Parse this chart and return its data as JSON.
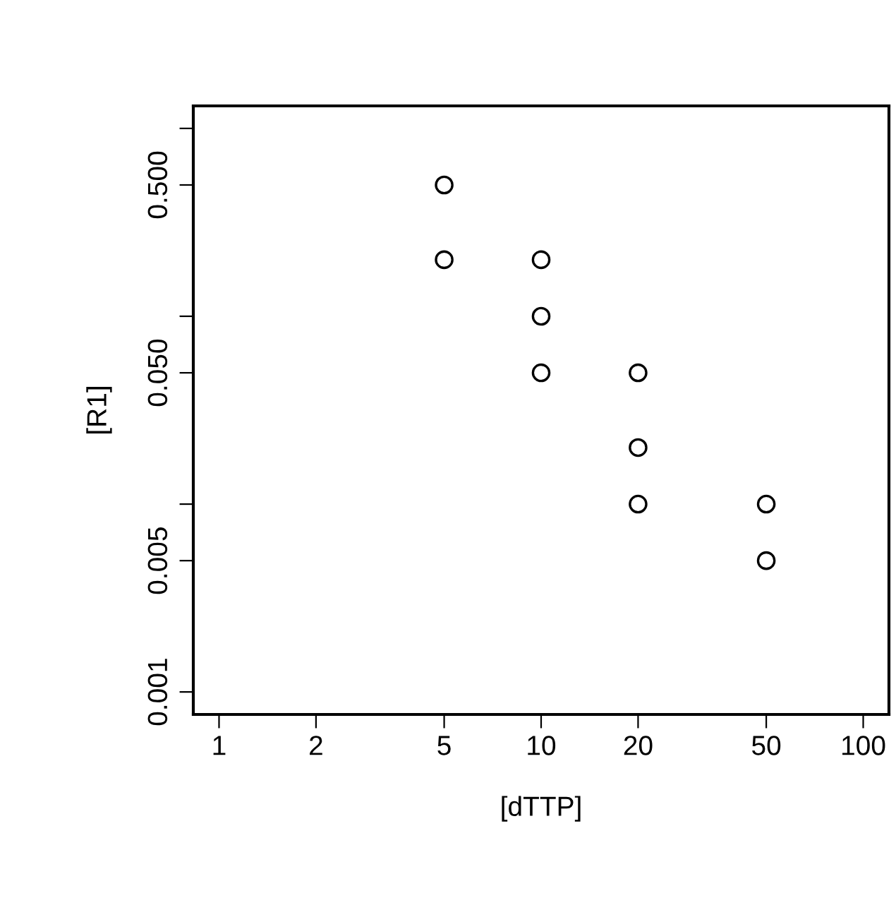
{
  "chart_data": {
    "type": "scatter",
    "xlabel": "[dTTP]",
    "ylabel": "[R1]",
    "log": "xy",
    "x": [
      5,
      5,
      10,
      10,
      10,
      20,
      20,
      20,
      50,
      50
    ],
    "series": [
      {
        "color": "#000000",
        "values": [
          0.5,
          0.2,
          0.2,
          0.1,
          0.05,
          0.05,
          0.02,
          0.01,
          0.01,
          0.005
        ]
      }
    ],
    "marker": "circle",
    "grid": false,
    "legend": false,
    "xlim": [
      0.832,
      120.2
    ],
    "ylim": [
      0.000759,
      1.318
    ],
    "xticks": [
      1,
      2,
      5,
      10,
      20,
      50,
      100
    ],
    "yticks": [
      "0.001",
      {
        "value": 0.005,
        "label": "0.005"
      },
      {
        "value": 0.01,
        "label": null
      },
      {
        "value": 0.05,
        "label": "0.050"
      },
      {
        "value": 0.1,
        "label": null
      },
      {
        "value": 0.5,
        "label": "0.500"
      },
      {
        "value": 1,
        "label": null
      }
    ]
  }
}
